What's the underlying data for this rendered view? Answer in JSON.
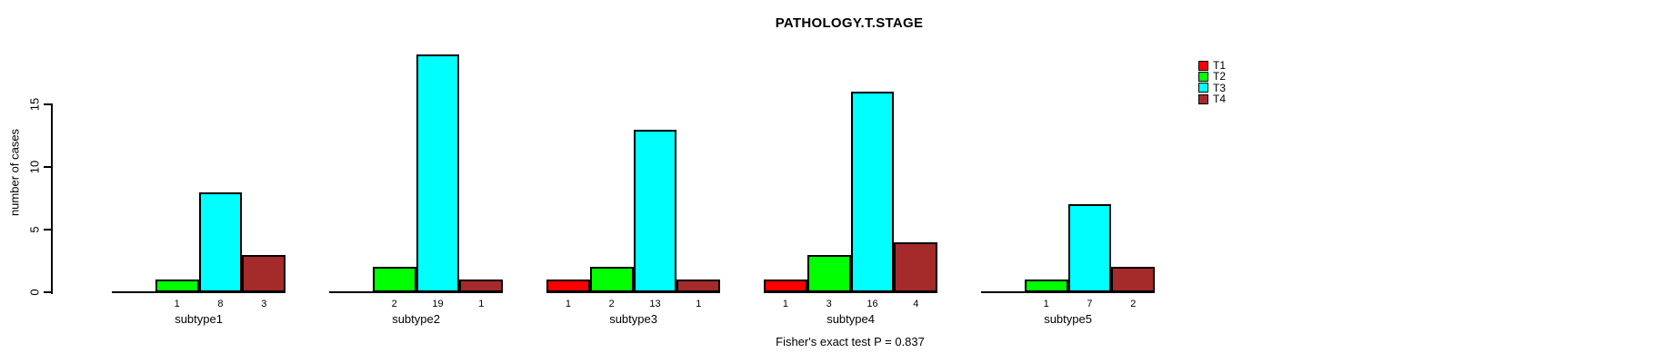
{
  "title": "PATHOLOGY.T.STAGE",
  "footer": "Fisher's exact test P = 0.837",
  "chart_data": {
    "type": "bar",
    "title": "PATHOLOGY.T.STAGE",
    "xlabel": "",
    "ylabel": "number of cases",
    "categories": [
      "subtype1",
      "subtype2",
      "subtype3",
      "subtype4",
      "subtype5"
    ],
    "series": [
      {
        "name": "T1",
        "color": "#FF0000",
        "values": [
          0,
          0,
          1,
          1,
          0
        ]
      },
      {
        "name": "T2",
        "color": "#00FF00",
        "values": [
          1,
          2,
          2,
          3,
          1
        ]
      },
      {
        "name": "T3",
        "color": "#00FFFF",
        "values": [
          8,
          19,
          13,
          16,
          7
        ]
      },
      {
        "name": "T4",
        "color": "#A52A2A",
        "values": [
          3,
          1,
          1,
          4,
          2
        ]
      }
    ],
    "bar_value_labels_shown_when_nonzero": true,
    "yticks": [
      0,
      5,
      10,
      15
    ],
    "ylim": [
      0,
      19
    ],
    "grid": false,
    "legend_position": "top-right",
    "annotation": "Fisher's exact test P = 0.837"
  }
}
